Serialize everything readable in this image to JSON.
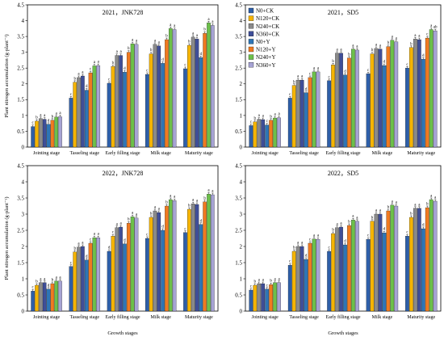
{
  "chart_data": {
    "type": "bar",
    "ylabel": "Plant nitrogen accumulation (g·plant⁻¹)",
    "xlabel": "Growth stages",
    "categories": [
      "Jointing stage",
      "Tasseling stage",
      "Early filling stage",
      "Milk stage",
      "Maturity stage"
    ],
    "ylim": [
      0,
      4.5
    ],
    "yticks": [
      "0",
      "0.5",
      "1",
      "1.5",
      "2",
      "2.5",
      "3",
      "3.5",
      "4",
      "4.5"
    ],
    "series_names": [
      "N0+CK",
      "N120+CK",
      "N240+CK",
      "N360+CK",
      "N0+Y",
      "N120+Y",
      "N240+Y",
      "N360+Y"
    ],
    "series_colors": [
      "#2E5FA8",
      "#F5B400",
      "#8A8A8A",
      "#3F4E98",
      "#2E75B6",
      "#F07A20",
      "#6CC04A",
      "#A6A3D4"
    ],
    "legend_position": "top-left",
    "panels": [
      {
        "title": "2021，JNK728",
        "values": [
          [
            0.65,
            0.82,
            0.9,
            0.88,
            0.72,
            0.85,
            0.95,
            0.96
          ],
          [
            1.55,
            2.05,
            2.2,
            2.25,
            1.8,
            2.35,
            2.57,
            2.58
          ],
          [
            2.02,
            2.55,
            2.9,
            2.9,
            2.37,
            3.0,
            3.27,
            3.25
          ],
          [
            2.3,
            2.95,
            3.25,
            3.2,
            2.65,
            3.4,
            3.75,
            3.72
          ],
          [
            2.48,
            3.22,
            3.48,
            3.42,
            2.83,
            3.6,
            3.93,
            3.85
          ]
        ],
        "letters": [
          [
            "c",
            "b",
            "a",
            "a",
            "d",
            "b",
            "a",
            "a"
          ],
          [
            "c",
            "b",
            "a",
            "a",
            "d",
            "c",
            "a",
            "a"
          ],
          [
            "c",
            "b",
            "a",
            "a",
            "d",
            "b",
            "a",
            "a"
          ],
          [
            "c",
            "b",
            "a",
            "a",
            "d",
            "b",
            "a",
            "a"
          ],
          [
            "c",
            "b",
            "a",
            "a",
            "d",
            "b",
            "a",
            "a"
          ]
        ]
      },
      {
        "title": "2021，SD5",
        "values": [
          [
            0.68,
            0.8,
            0.88,
            0.87,
            0.7,
            0.85,
            0.92,
            0.93
          ],
          [
            1.55,
            1.95,
            2.12,
            2.12,
            1.72,
            2.2,
            2.38,
            2.38
          ],
          [
            2.1,
            2.6,
            2.97,
            2.97,
            2.28,
            2.82,
            3.1,
            3.07
          ],
          [
            2.32,
            2.95,
            3.12,
            3.1,
            2.58,
            3.18,
            3.38,
            3.33
          ],
          [
            2.5,
            3.15,
            3.42,
            3.4,
            2.78,
            3.45,
            3.72,
            3.68
          ]
        ],
        "letters": [
          [
            "c",
            "b",
            "a",
            "a",
            "c",
            "b",
            "a",
            "a"
          ],
          [
            "c",
            "b",
            "a",
            "a",
            "d",
            "c",
            "a",
            "a"
          ],
          [
            "c",
            "b",
            "a",
            "a",
            "d",
            "b",
            "a",
            "a"
          ],
          [
            "c",
            "b",
            "a",
            "a",
            "d",
            "b",
            "a",
            "a"
          ],
          [
            "c",
            "b",
            "a",
            "a",
            "d",
            "c",
            "a",
            "ab"
          ]
        ]
      },
      {
        "title": "2022，JNK728",
        "values": [
          [
            0.62,
            0.8,
            0.88,
            0.88,
            0.68,
            0.85,
            0.93,
            0.93
          ],
          [
            1.38,
            1.83,
            1.98,
            2.0,
            1.58,
            2.1,
            2.27,
            2.27
          ],
          [
            1.85,
            2.32,
            2.58,
            2.6,
            2.08,
            2.72,
            2.92,
            2.88
          ],
          [
            2.25,
            2.9,
            3.1,
            3.05,
            2.5,
            3.25,
            3.45,
            3.42
          ],
          [
            2.43,
            3.15,
            3.32,
            3.3,
            2.68,
            3.38,
            3.62,
            3.6
          ]
        ],
        "letters": [
          [
            "c",
            "b",
            "a",
            "a",
            "d",
            "b",
            "a",
            "a"
          ],
          [
            "c",
            "b",
            "a",
            "a",
            "d",
            "c",
            "a",
            "a"
          ],
          [
            "d",
            "c",
            "a",
            "a",
            "d",
            "b",
            "a",
            "a"
          ],
          [
            "c",
            "b",
            "a",
            "a",
            "d",
            "b",
            "a",
            "a"
          ],
          [
            "c",
            "b",
            "a",
            "a",
            "d",
            "b",
            "a",
            "a"
          ]
        ]
      },
      {
        "title": "2022，SD5",
        "values": [
          [
            0.65,
            0.8,
            0.85,
            0.85,
            0.68,
            0.82,
            0.88,
            0.88
          ],
          [
            1.42,
            1.85,
            2.0,
            2.0,
            1.6,
            2.1,
            2.23,
            2.22
          ],
          [
            1.85,
            2.4,
            2.58,
            2.6,
            2.05,
            2.65,
            2.82,
            2.78
          ],
          [
            2.22,
            2.78,
            3.0,
            3.0,
            2.42,
            3.1,
            3.28,
            3.25
          ],
          [
            2.32,
            2.9,
            3.18,
            3.18,
            2.55,
            3.2,
            3.45,
            3.4
          ]
        ],
        "letters": [
          [
            "c",
            "b",
            "a",
            "a",
            "c",
            "b",
            "a",
            "a"
          ],
          [
            "c",
            "b",
            "a",
            "a",
            "d",
            "c",
            "a",
            "a"
          ],
          [
            "c",
            "b",
            "a",
            "a",
            "d",
            "b",
            "a",
            "a"
          ],
          [
            "c",
            "b",
            "a",
            "a",
            "d",
            "b",
            "a",
            "a"
          ],
          [
            "c",
            "b",
            "a",
            "a",
            "d",
            "b",
            "a",
            "a"
          ]
        ]
      }
    ]
  }
}
